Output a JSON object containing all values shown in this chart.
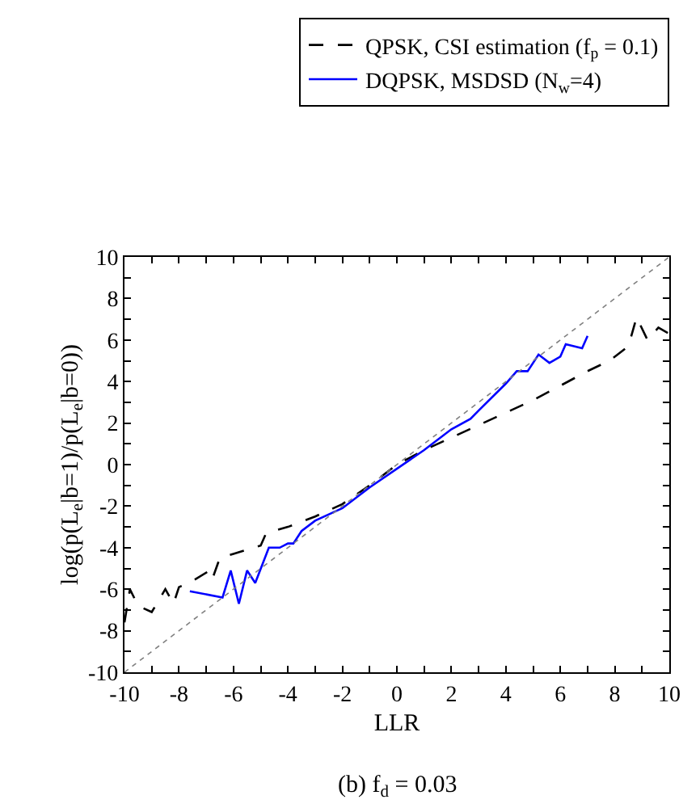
{
  "chart_data": {
    "type": "line",
    "xlabel": "LLR",
    "ylabel": "log(p(L$_{e}$|b=1)/p(L$_{e}$|b=0))",
    "annotations": [
      "(b) f$_{d}$ = 0.03"
    ],
    "xlim": [
      -10,
      10
    ],
    "ylim": [
      -10,
      10
    ],
    "xticks": [
      -10,
      {
        "value": -9,
        "label": null
      },
      -8,
      {
        "value": -7,
        "label": null
      },
      -6,
      {
        "value": -5,
        "label": null
      },
      -4,
      {
        "value": -3,
        "label": null
      },
      -2,
      {
        "value": -1,
        "label": null
      },
      0,
      {
        "value": 1,
        "label": null
      },
      2,
      {
        "value": 3,
        "label": null
      },
      4,
      {
        "value": 5,
        "label": null
      },
      6,
      {
        "value": 7,
        "label": null
      },
      8,
      {
        "value": 9,
        "label": null
      },
      10
    ],
    "yticks": [
      -10,
      {
        "value": -9,
        "label": null
      },
      -8,
      {
        "value": -7,
        "label": null
      },
      -6,
      {
        "value": -5,
        "label": null
      },
      -4,
      {
        "value": -3,
        "label": null
      },
      -2,
      {
        "value": -1,
        "label": null
      },
      0,
      {
        "value": 1,
        "label": null
      },
      2,
      {
        "value": 3,
        "label": null
      },
      4,
      {
        "value": 5,
        "label": null
      },
      6,
      {
        "value": 7,
        "label": null
      },
      8,
      {
        "value": 9,
        "label": null
      },
      10
    ],
    "legend": "top",
    "marker": "none",
    "series": [
      {
        "name": "QPSK, CSI estimation (f$_{p}$ = 0.1)",
        "color": "#000000",
        "line_style": "dashed",
        "x": [
          -10,
          -9.8,
          -9.5,
          -9,
          -8.5,
          -8.2,
          -8,
          -7.5,
          -7,
          -6.8,
          -6.5,
          -6,
          -5,
          -4.8,
          -4,
          -3,
          -2,
          -1,
          0,
          1,
          2,
          3,
          4,
          5,
          6,
          7,
          7.8,
          8.5,
          8.8,
          9.2,
          9.6,
          10
        ],
        "values": [
          -7.6,
          -6,
          -6.8,
          -7.1,
          -6,
          -6.7,
          -5.9,
          -5.6,
          -5.2,
          -5.6,
          -4.5,
          -4.3,
          -3.9,
          -3.3,
          -3,
          -2.5,
          -1.9,
          -1,
          0,
          0.7,
          1.3,
          1.9,
          2.5,
          3.1,
          3.8,
          4.5,
          5,
          5.7,
          7.1,
          6,
          6.6,
          6.3
        ]
      },
      {
        "name": "DQPSK, MSDSD (N$_{w}$=4)",
        "color": "#0000ff",
        "line_style": "solid",
        "x": [
          -7.6,
          -6.4,
          -6.1,
          -5.8,
          -5.5,
          -5.2,
          -4.7,
          -4.3,
          -4,
          -3.8,
          -3.5,
          -3,
          -2,
          -1,
          0,
          1,
          2,
          2.7,
          3,
          4,
          4.4,
          4.8,
          5.2,
          5.6,
          6,
          6.2,
          6.8,
          7
        ],
        "values": [
          -6.1,
          -6.4,
          -5.1,
          -6.7,
          -5.1,
          -5.7,
          -4,
          -4,
          -3.8,
          -3.8,
          -3.2,
          -2.7,
          -2.1,
          -1.1,
          -0.2,
          0.7,
          1.7,
          2.2,
          2.6,
          3.9,
          4.5,
          4.5,
          5.3,
          4.9,
          5.2,
          5.8,
          5.6,
          6.2
        ]
      },
      {
        "color": "#808080",
        "line_style": "dotted",
        "x": [
          -10,
          10
        ],
        "values": [
          -10,
          10
        ]
      }
    ]
  }
}
